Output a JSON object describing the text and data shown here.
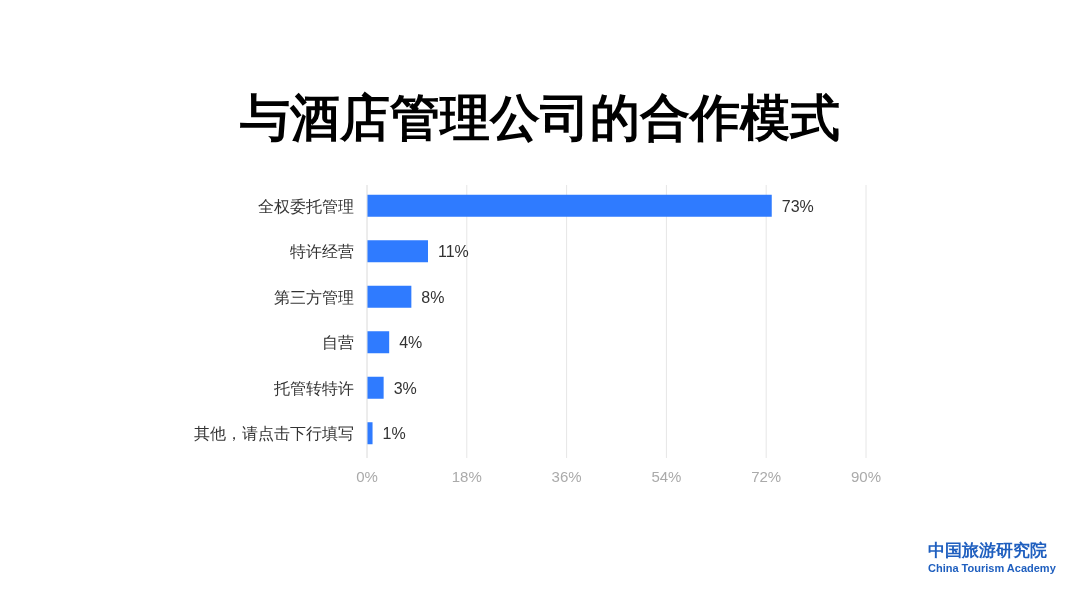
{
  "chart_data": {
    "type": "bar",
    "orientation": "horizontal",
    "title": "与酒店管理公司的合作模式",
    "categories": [
      "全权委托管理",
      "特许经营",
      "第三方管理",
      "自营",
      "托管转特许",
      "其他，请点击下行填写"
    ],
    "values": [
      73,
      11,
      8,
      4,
      3,
      1
    ],
    "color": "#2f7bff",
    "value_labels": [
      "73%",
      "11%",
      "8%",
      "4%",
      "3%",
      "1%"
    ],
    "xlim": [
      0,
      90
    ],
    "xticks": [
      {
        "value": 0,
        "label": "0%"
      },
      {
        "value": 18,
        "label": "18%"
      },
      {
        "value": 36,
        "label": "36%"
      },
      {
        "value": 54,
        "label": "54%"
      },
      {
        "value": 72,
        "label": "72%"
      },
      {
        "value": 90,
        "label": "90%"
      }
    ],
    "grid": "x",
    "annotations": [
      "中国旅游研究院",
      "China Tourism Academy"
    ]
  }
}
